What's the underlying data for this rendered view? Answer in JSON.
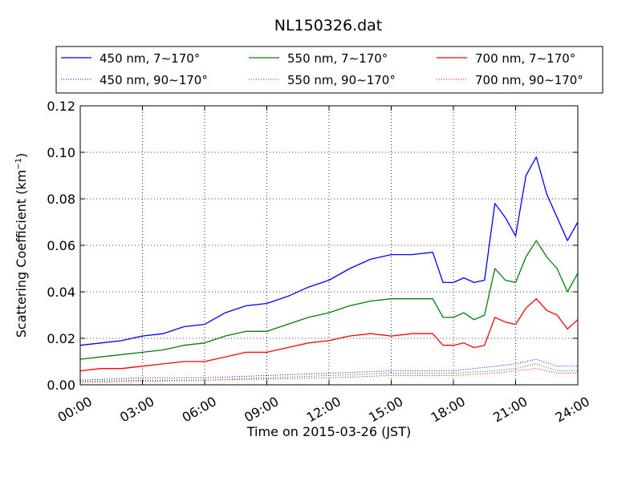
{
  "chart_data": {
    "type": "line",
    "title": "NL150326.dat",
    "xlabel": "Time on 2015-03-26 (JST)",
    "ylabel": "Scattering Coefficient (km",
    "ylabel_sup": "−1",
    "ylabel_close": ")",
    "xlim": [
      0,
      24
    ],
    "ylim": [
      0,
      0.12
    ],
    "x_ticks": [
      0,
      3,
      6,
      9,
      12,
      15,
      18,
      21,
      24
    ],
    "x_tick_labels": [
      "00:00",
      "03:00",
      "06:00",
      "09:00",
      "12:00",
      "15:00",
      "18:00",
      "21:00",
      "24:00"
    ],
    "y_ticks": [
      0,
      0.02,
      0.04,
      0.06,
      0.08,
      0.1,
      0.12
    ],
    "y_tick_labels": [
      "0.00",
      "0.02",
      "0.04",
      "0.06",
      "0.08",
      "0.10",
      "0.12"
    ],
    "grid": true,
    "legend_position": "top",
    "x_unit": "hours",
    "series": [
      {
        "name": "450 nm, 7∼170°",
        "color": "#0000ff",
        "style": "solid",
        "x": [
          0,
          1,
          2,
          3,
          4,
          5,
          6,
          7,
          8,
          9,
          10,
          11,
          12,
          13,
          14,
          15,
          16,
          17,
          17.5,
          18,
          18.5,
          19,
          19.5,
          20,
          20.5,
          21,
          21.5,
          22,
          22.5,
          23,
          23.5,
          24
        ],
        "values": [
          0.017,
          0.018,
          0.019,
          0.021,
          0.022,
          0.025,
          0.026,
          0.031,
          0.034,
          0.035,
          0.038,
          0.042,
          0.045,
          0.05,
          0.054,
          0.056,
          0.056,
          0.057,
          0.044,
          0.044,
          0.046,
          0.044,
          0.045,
          0.078,
          0.072,
          0.064,
          0.09,
          0.098,
          0.082,
          0.072,
          0.062,
          0.07
        ]
      },
      {
        "name": "550 nm, 7∼170°",
        "color": "#008000",
        "style": "solid",
        "x": [
          0,
          1,
          2,
          3,
          4,
          5,
          6,
          7,
          8,
          9,
          10,
          11,
          12,
          13,
          14,
          15,
          16,
          17,
          17.5,
          18,
          18.5,
          19,
          19.5,
          20,
          20.5,
          21,
          21.5,
          22,
          22.5,
          23,
          23.5,
          24
        ],
        "values": [
          0.011,
          0.012,
          0.013,
          0.014,
          0.015,
          0.017,
          0.018,
          0.021,
          0.023,
          0.023,
          0.026,
          0.029,
          0.031,
          0.034,
          0.036,
          0.037,
          0.037,
          0.037,
          0.029,
          0.029,
          0.031,
          0.028,
          0.03,
          0.05,
          0.045,
          0.044,
          0.055,
          0.062,
          0.055,
          0.05,
          0.04,
          0.048
        ]
      },
      {
        "name": "700 nm, 7∼170°",
        "color": "#ff0000",
        "style": "solid",
        "x": [
          0,
          1,
          2,
          3,
          4,
          5,
          6,
          7,
          8,
          9,
          10,
          11,
          12,
          13,
          14,
          15,
          16,
          17,
          17.5,
          18,
          18.5,
          19,
          19.5,
          20,
          20.5,
          21,
          21.5,
          22,
          22.5,
          23,
          23.5,
          24
        ],
        "values": [
          0.006,
          0.007,
          0.007,
          0.008,
          0.009,
          0.01,
          0.01,
          0.012,
          0.014,
          0.014,
          0.016,
          0.018,
          0.019,
          0.021,
          0.022,
          0.021,
          0.022,
          0.022,
          0.017,
          0.017,
          0.018,
          0.016,
          0.017,
          0.029,
          0.027,
          0.026,
          0.033,
          0.037,
          0.032,
          0.03,
          0.024,
          0.028
        ]
      },
      {
        "name": "450 nm, 90∼170°",
        "color": "#0000ff",
        "style": "dotted",
        "x": [
          0,
          3,
          6,
          9,
          12,
          15,
          18,
          20,
          21,
          22,
          23,
          24
        ],
        "values": [
          0.002,
          0.003,
          0.003,
          0.004,
          0.005,
          0.006,
          0.006,
          0.008,
          0.009,
          0.011,
          0.008,
          0.008
        ]
      },
      {
        "name": "550 nm, 90∼170°",
        "color": "#008000",
        "style": "dotted",
        "x": [
          0,
          3,
          6,
          9,
          12,
          15,
          18,
          20,
          21,
          22,
          23,
          24
        ],
        "values": [
          0.0015,
          0.002,
          0.002,
          0.003,
          0.004,
          0.005,
          0.005,
          0.006,
          0.007,
          0.009,
          0.006,
          0.006
        ]
      },
      {
        "name": "700 nm, 90∼170°",
        "color": "#ff0000",
        "style": "dotted",
        "x": [
          0,
          3,
          6,
          9,
          12,
          15,
          18,
          20,
          21,
          22,
          23,
          24
        ],
        "values": [
          0.001,
          0.0015,
          0.002,
          0.0025,
          0.003,
          0.004,
          0.004,
          0.005,
          0.006,
          0.007,
          0.005,
          0.005
        ]
      }
    ],
    "legend_order": [
      0,
      3,
      1,
      4,
      2,
      5
    ]
  }
}
